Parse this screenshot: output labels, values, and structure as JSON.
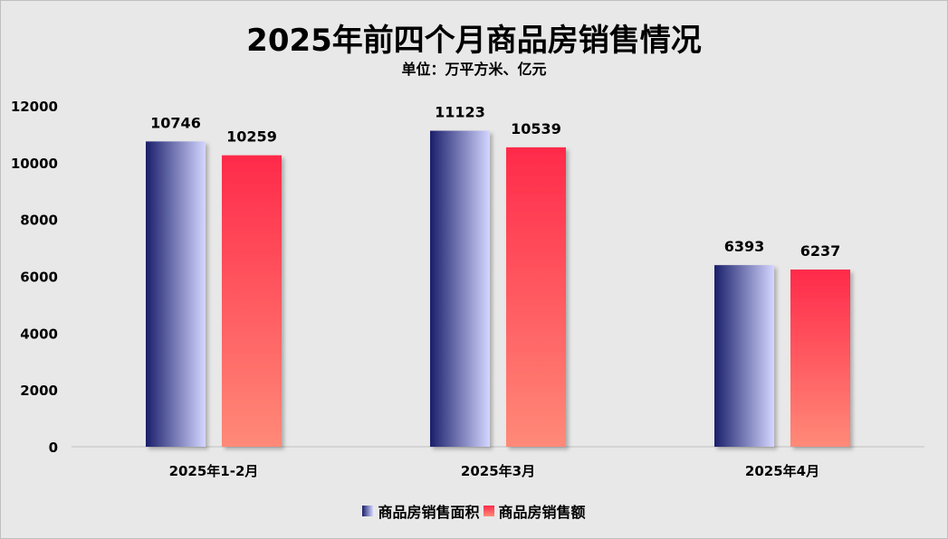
{
  "chart_data": {
    "type": "bar",
    "title": "2025年前四个月商品房销售情况",
    "subtitle": "单位：万平方米、亿元",
    "categories": [
      "2025年1-2月",
      "2025年3月",
      "2025年4月"
    ],
    "series": [
      {
        "name": "商品房销售面积",
        "values": [
          10746,
          11123,
          6393
        ],
        "color_start": "#1a1f6b",
        "color_end": "#d4d6ff"
      },
      {
        "name": "商品房销售额",
        "values": [
          10259,
          10539,
          6237
        ],
        "color_start": "#ff2a4a",
        "color_end": "#ff8a78"
      }
    ],
    "ylim": [
      0,
      12000
    ],
    "yticks": [
      0,
      2000,
      4000,
      6000,
      8000,
      10000,
      12000
    ],
    "grid": false,
    "legend_position": "bottom",
    "data_labels": true
  }
}
